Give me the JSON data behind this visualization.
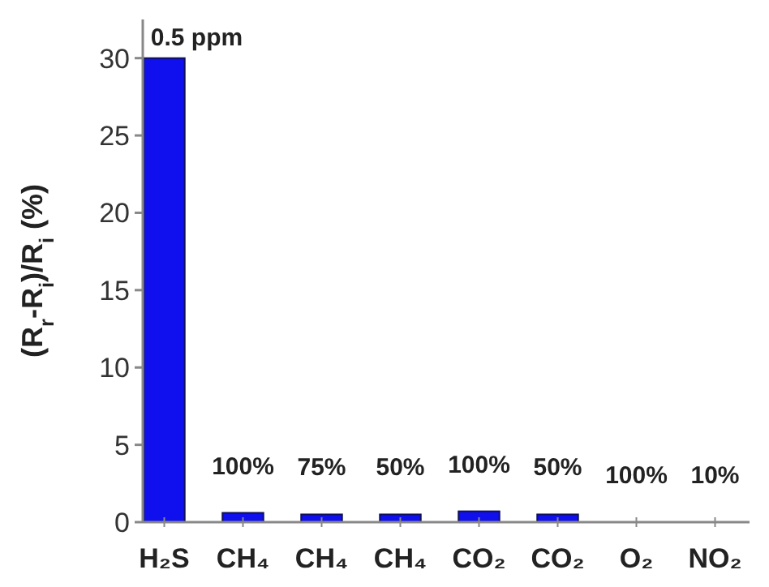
{
  "chart_data": {
    "type": "bar",
    "ylabel": "(R$_{r}$-R$_{i}$)/R$_{i}$ (%)",
    "categories": [
      "H₂S",
      "CH₄",
      "CH₄",
      "CH₄",
      "CO₂",
      "CO₂",
      "O₂",
      "NO₂"
    ],
    "values": [
      30,
      0.6,
      0.5,
      0.5,
      0.7,
      0.5,
      0,
      0
    ],
    "annotations": [
      "0.5 ppm",
      "100%",
      "75%",
      "50%",
      "100%",
      "50%",
      "100%",
      "10%"
    ],
    "color": "#1010ee",
    "ylim": [
      0,
      32.5
    ],
    "yticks": [
      0,
      5,
      10,
      15,
      20,
      25,
      30
    ],
    "grid": false
  }
}
